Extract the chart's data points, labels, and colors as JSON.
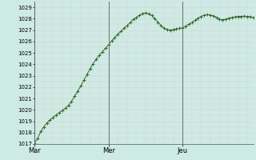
{
  "bg_color": "#ceeae4",
  "grid_color_major": "#c8a8a8",
  "grid_color_minor": "#ddd0d0",
  "line_color": "#2d6b2d",
  "marker_color": "#2d6b2d",
  "ylim": [
    1017,
    1029.5
  ],
  "yticks": [
    1017,
    1018,
    1019,
    1020,
    1021,
    1022,
    1023,
    1024,
    1025,
    1026,
    1027,
    1028,
    1029
  ],
  "xlim": [
    0,
    71
  ],
  "day_labels": [
    "Mar",
    "Mer",
    "Jeu"
  ],
  "day_positions": [
    0,
    24,
    48
  ],
  "values": [
    1017.1,
    1017.5,
    1018.1,
    1018.5,
    1018.85,
    1019.1,
    1019.35,
    1019.55,
    1019.75,
    1019.95,
    1020.15,
    1020.4,
    1020.75,
    1021.2,
    1021.65,
    1022.1,
    1022.6,
    1023.1,
    1023.6,
    1024.05,
    1024.45,
    1024.8,
    1025.1,
    1025.4,
    1025.7,
    1026.05,
    1026.35,
    1026.65,
    1026.9,
    1027.15,
    1027.4,
    1027.65,
    1027.95,
    1028.1,
    1028.3,
    1028.45,
    1028.5,
    1028.42,
    1028.28,
    1028.0,
    1027.7,
    1027.4,
    1027.15,
    1027.05,
    1027.0,
    1027.05,
    1027.1,
    1027.15,
    1027.2,
    1027.35,
    1027.5,
    1027.65,
    1027.85,
    1028.05,
    1028.2,
    1028.3,
    1028.35,
    1028.32,
    1028.25,
    1028.1,
    1027.95,
    1027.9,
    1027.95,
    1028.05,
    1028.1,
    1028.15,
    1028.2,
    1028.2,
    1028.22,
    1028.2,
    1028.18,
    1028.1
  ]
}
